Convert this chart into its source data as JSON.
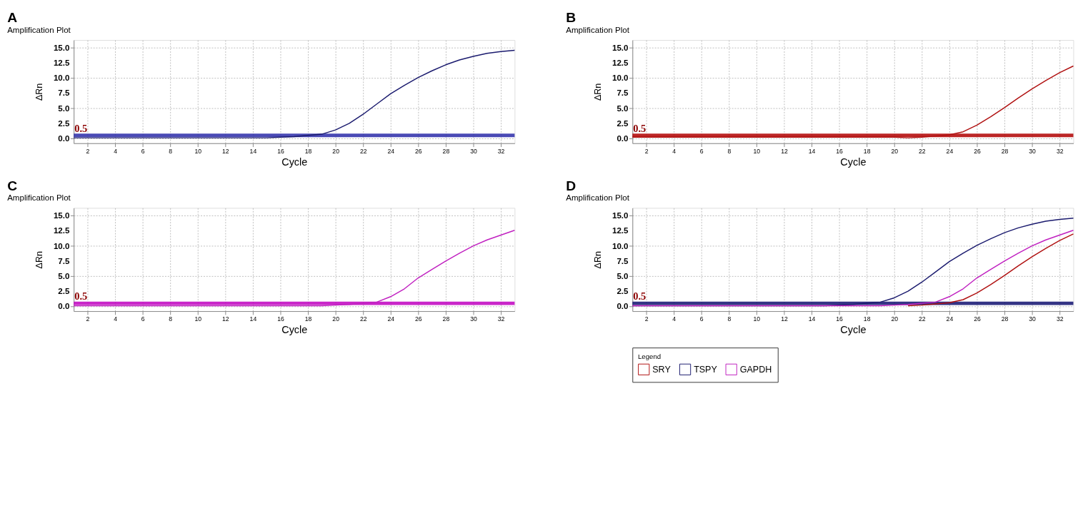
{
  "chart_data": [
    {
      "type": "line",
      "title": "A",
      "subtitle": "Amplification Plot",
      "xlabel": "Cycle",
      "ylabel": "ΔRn",
      "grid": true,
      "marker": "none",
      "line_style": "solid",
      "x": [
        1,
        2,
        3,
        4,
        5,
        6,
        7,
        8,
        9,
        10,
        11,
        12,
        13,
        14,
        15,
        16,
        17,
        18,
        19,
        20,
        21,
        22,
        23,
        24,
        25,
        26,
        27,
        28,
        29,
        30,
        31,
        32,
        33
      ],
      "xlim": [
        1,
        33
      ],
      "xticks": [
        2,
        4,
        6,
        8,
        10,
        12,
        14,
        16,
        18,
        20,
        22,
        24,
        26,
        28,
        30,
        32
      ],
      "ylim": [
        -0.8,
        16.3
      ],
      "yticks": [
        {
          "value": 0,
          "label": "0.0"
        },
        2.5,
        {
          "value": 5,
          "label": "5.0"
        },
        7.5,
        {
          "value": 10,
          "label": "10.0"
        },
        12.5,
        {
          "value": 15,
          "label": "15.0"
        }
      ],
      "ref_lines": [
        {
          "axis": "y",
          "value": 0.5,
          "label": "0.5",
          "color": "#2a2aa8"
        }
      ],
      "series": [
        {
          "color": "#1a1a6e",
          "values": [
            0.1,
            0.1,
            0.1,
            0.1,
            0.1,
            0.1,
            0.1,
            0.1,
            0.1,
            0.1,
            0.1,
            0.1,
            0.1,
            0.1,
            0.1,
            0.2,
            0.3,
            0.5,
            0.7,
            1.4,
            2.5,
            4.0,
            5.7,
            7.4,
            8.8,
            10.1,
            11.2,
            12.2,
            13.0,
            13.6,
            14.1,
            14.4,
            14.6
          ]
        }
      ]
    },
    {
      "type": "line",
      "title": "B",
      "subtitle": "Amplification Plot",
      "xlabel": "Cycle",
      "ylabel": "ΔRn",
      "grid": true,
      "marker": "none",
      "line_style": "solid",
      "x": [
        1,
        2,
        3,
        4,
        5,
        6,
        7,
        8,
        9,
        10,
        11,
        12,
        13,
        14,
        15,
        16,
        17,
        18,
        19,
        20,
        21,
        22,
        23,
        24,
        25,
        26,
        27,
        28,
        29,
        30,
        31,
        32,
        33
      ],
      "xlim": [
        1,
        33
      ],
      "xticks": [
        2,
        4,
        6,
        8,
        10,
        12,
        14,
        16,
        18,
        20,
        22,
        24,
        26,
        28,
        30,
        32
      ],
      "ylim": [
        -0.8,
        16.3
      ],
      "yticks": [
        {
          "value": 0,
          "label": "0.0"
        },
        2.5,
        {
          "value": 5,
          "label": "5.0"
        },
        7.5,
        {
          "value": 10,
          "label": "10.0"
        },
        12.5,
        {
          "value": 15,
          "label": "15.0"
        }
      ],
      "ref_lines": [
        {
          "axis": "y",
          "value": 0.5,
          "label": "0.5",
          "color": "#b00000"
        }
      ],
      "series": [
        {
          "color": "#b01010",
          "values": [
            0.2,
            0.2,
            0.2,
            0.2,
            0.2,
            0.2,
            0.2,
            0.2,
            0.2,
            0.2,
            0.2,
            0.2,
            0.2,
            0.2,
            0.2,
            0.2,
            0.2,
            0.2,
            0.2,
            0.2,
            0.1,
            0.2,
            0.4,
            0.6,
            1.1,
            2.2,
            3.6,
            5.1,
            6.7,
            8.2,
            9.6,
            10.9,
            12.0
          ]
        }
      ]
    },
    {
      "type": "line",
      "title": "C",
      "subtitle": "Amplification Plot",
      "xlabel": "Cycle",
      "ylabel": "ΔRn",
      "grid": true,
      "marker": "none",
      "line_style": "solid",
      "x": [
        1,
        2,
        3,
        4,
        5,
        6,
        7,
        8,
        9,
        10,
        11,
        12,
        13,
        14,
        15,
        16,
        17,
        18,
        19,
        20,
        21,
        22,
        23,
        24,
        25,
        26,
        27,
        28,
        29,
        30,
        31,
        32,
        33
      ],
      "xlim": [
        1,
        33
      ],
      "xticks": [
        2,
        4,
        6,
        8,
        10,
        12,
        14,
        16,
        18,
        20,
        22,
        24,
        26,
        28,
        30,
        32
      ],
      "ylim": [
        -0.8,
        16.3
      ],
      "yticks": [
        {
          "value": 0,
          "label": "0.0"
        },
        2.5,
        {
          "value": 5,
          "label": "5.0"
        },
        7.5,
        {
          "value": 10,
          "label": "10.0"
        },
        12.5,
        {
          "value": 15,
          "label": "15.0"
        }
      ],
      "ref_lines": [
        {
          "axis": "y",
          "value": 0.5,
          "label": "0.5",
          "color": "#c000c0"
        }
      ],
      "series": [
        {
          "color": "#c020c0",
          "values": [
            0.1,
            0.1,
            0.1,
            0.1,
            0.1,
            0.1,
            0.1,
            0.1,
            0.1,
            0.1,
            0.1,
            0.1,
            0.1,
            0.1,
            0.1,
            0.1,
            0.1,
            0.1,
            0.1,
            0.2,
            0.3,
            0.5,
            0.7,
            1.6,
            2.9,
            4.7,
            6.1,
            7.5,
            8.8,
            10.0,
            11.0,
            11.8,
            12.6
          ]
        }
      ]
    },
    {
      "type": "line",
      "title": "D",
      "subtitle": "Amplification Plot",
      "xlabel": "Cycle",
      "ylabel": "ΔRn",
      "legend_title": "Legend",
      "legend": "bottom",
      "grid": true,
      "marker": "none",
      "line_style": "solid",
      "x": [
        1,
        2,
        3,
        4,
        5,
        6,
        7,
        8,
        9,
        10,
        11,
        12,
        13,
        14,
        15,
        16,
        17,
        18,
        19,
        20,
        21,
        22,
        23,
        24,
        25,
        26,
        27,
        28,
        29,
        30,
        31,
        32,
        33
      ],
      "xlim": [
        1,
        33
      ],
      "xticks": [
        2,
        4,
        6,
        8,
        10,
        12,
        14,
        16,
        18,
        20,
        22,
        24,
        26,
        28,
        30,
        32
      ],
      "ylim": [
        -0.8,
        16.3
      ],
      "yticks": [
        {
          "value": 0,
          "label": "0.0"
        },
        2.5,
        {
          "value": 5,
          "label": "5.0"
        },
        7.5,
        {
          "value": 10,
          "label": "10.0"
        },
        12.5,
        {
          "value": 15,
          "label": "15.0"
        }
      ],
      "ref_lines": [
        {
          "axis": "y",
          "value": 0.5,
          "label": "0.5",
          "color": "#101070"
        }
      ],
      "series": [
        {
          "name": "SRY",
          "color": "#b01010",
          "values": [
            null,
            null,
            null,
            null,
            null,
            null,
            null,
            null,
            null,
            null,
            null,
            null,
            null,
            null,
            null,
            null,
            null,
            null,
            null,
            null,
            0.1,
            0.2,
            0.4,
            0.6,
            1.1,
            2.2,
            3.6,
            5.1,
            6.7,
            8.2,
            9.6,
            10.9,
            12.0
          ]
        },
        {
          "name": "TSPY",
          "color": "#1a1a6e",
          "values": [
            0.1,
            0.1,
            0.1,
            0.1,
            0.1,
            0.1,
            0.1,
            0.1,
            0.1,
            0.1,
            0.1,
            0.1,
            0.1,
            0.1,
            0.1,
            0.2,
            0.3,
            0.5,
            0.7,
            1.4,
            2.5,
            4.0,
            5.7,
            7.4,
            8.8,
            10.1,
            11.2,
            12.2,
            13.0,
            13.6,
            14.1,
            14.4,
            14.6
          ]
        },
        {
          "name": "GAPDH",
          "color": "#c020c0",
          "values": [
            0.1,
            0.1,
            0.1,
            0.1,
            0.1,
            0.1,
            0.1,
            0.1,
            0.1,
            0.1,
            0.1,
            0.1,
            0.1,
            0.1,
            0.1,
            0.1,
            0.1,
            0.1,
            0.1,
            0.2,
            0.3,
            0.5,
            0.7,
            1.6,
            2.9,
            4.7,
            6.1,
            7.5,
            8.8,
            10.0,
            11.0,
            11.8,
            12.6
          ]
        }
      ]
    }
  ]
}
